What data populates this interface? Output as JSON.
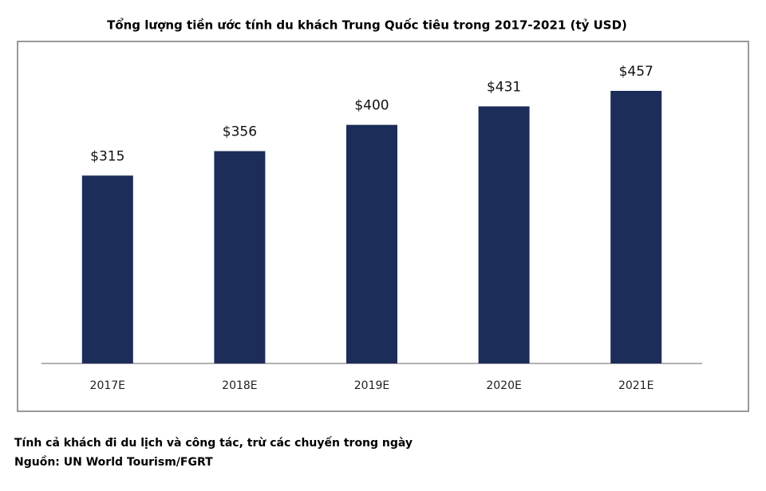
{
  "chart_data": {
    "type": "bar",
    "title": "Tổng lượng tiền ước tính du khách Trung Quốc tiêu trong 2017-2021 (tỷ USD)",
    "categories": [
      "2017E",
      "2018E",
      "2019E",
      "2020E",
      "2021E"
    ],
    "values": [
      315,
      356,
      400,
      431,
      457
    ],
    "value_labels": [
      "$315",
      "$356",
      "$400",
      "$431",
      "$457"
    ],
    "color": "#1b2d58",
    "note": "Tính cả khách đi du lịch và công tác, trừ các chuyến trong ngày",
    "source": "Nguồn: UN World Tourism/FGRT"
  }
}
